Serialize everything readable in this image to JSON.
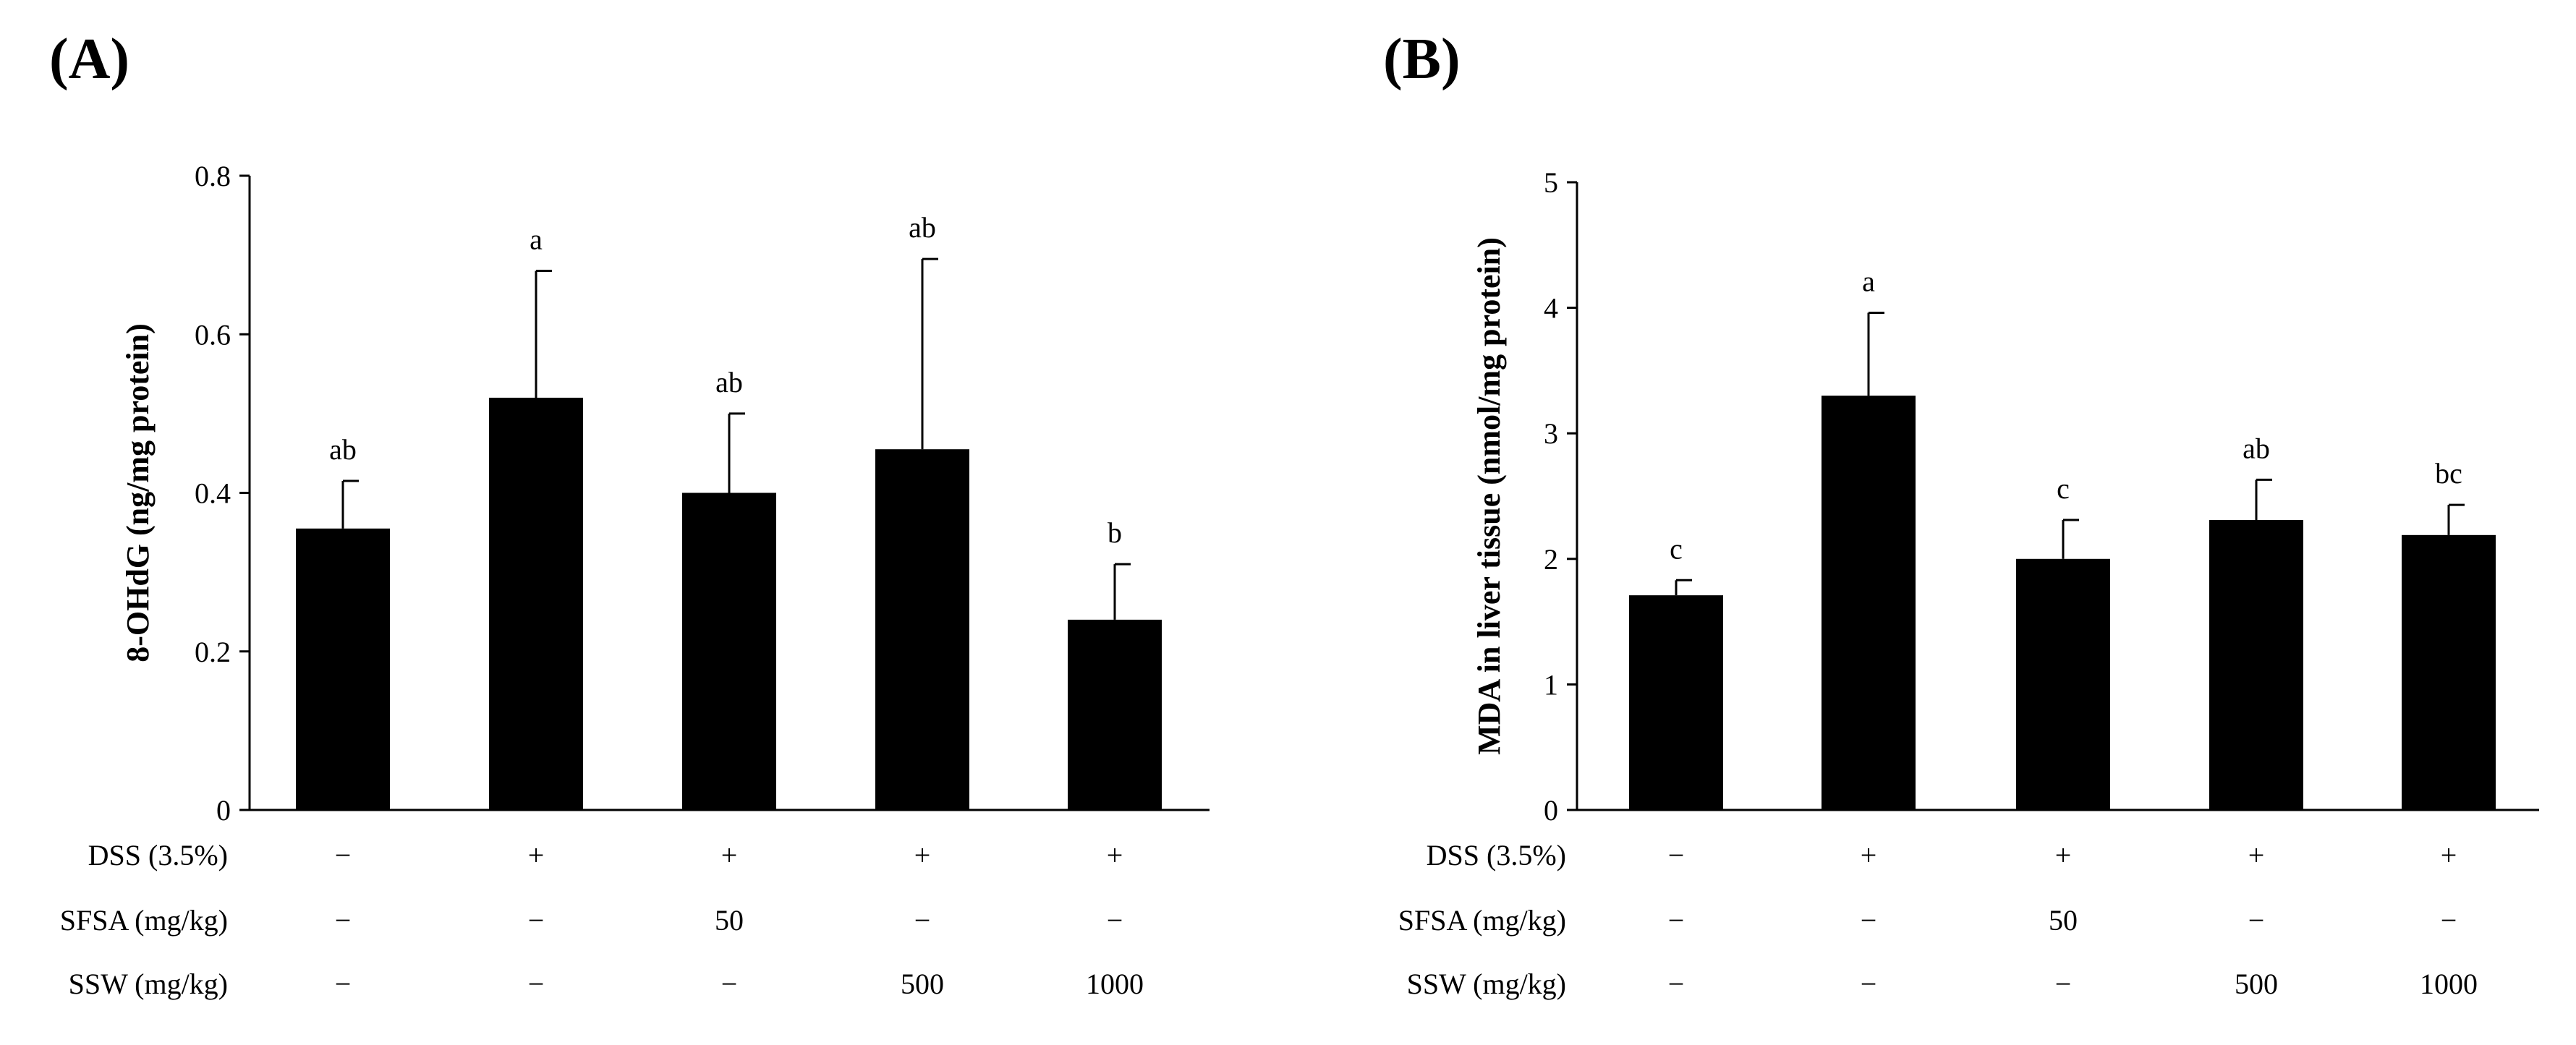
{
  "chart_data": [
    {
      "type": "bar",
      "panel": "(A)",
      "title": "",
      "xlabel": "",
      "ylabel": "8-OHdG (ng/mg protein)",
      "ylim": [
        0,
        0.8
      ],
      "yticks": [
        "0",
        "0.2",
        "0.4",
        "0.6",
        "0.8"
      ],
      "ytick_values": [
        0,
        0.2,
        0.4,
        0.6,
        0.8
      ],
      "values": [
        0.355,
        0.52,
        0.4,
        0.455,
        0.24
      ],
      "errors": [
        0.06,
        0.16,
        0.1,
        0.24,
        0.07
      ],
      "significance": [
        "ab",
        "a",
        "ab",
        "ab",
        "b"
      ],
      "conditions": [
        {
          "label": "DSS (3.5%)",
          "values": [
            "−",
            "+",
            "+",
            "+",
            "+"
          ]
        },
        {
          "label": "SFSA (mg/kg)",
          "values": [
            "−",
            "−",
            "50",
            "−",
            "−"
          ]
        },
        {
          "label": "SSW (mg/kg)",
          "values": [
            "−",
            "−",
            "−",
            "500",
            "1000"
          ]
        }
      ]
    },
    {
      "type": "bar",
      "panel": "(B)",
      "title": "",
      "xlabel": "",
      "ylabel": "MDA in liver  tissue (nmol/mg protein)",
      "ylim": [
        0,
        5
      ],
      "yticks": [
        "0",
        "1",
        "2",
        "3",
        "4",
        "5"
      ],
      "ytick_values": [
        0,
        1,
        2,
        3,
        4,
        5
      ],
      "values": [
        1.71,
        3.3,
        2.0,
        2.31,
        2.19
      ],
      "errors": [
        0.12,
        0.66,
        0.31,
        0.32,
        0.24
      ],
      "significance": [
        "c",
        "a",
        "c",
        "ab",
        "bc"
      ],
      "conditions": [
        {
          "label": "DSS (3.5%)",
          "values": [
            "−",
            "+",
            "+",
            "+",
            "+"
          ]
        },
        {
          "label": "SFSA (mg/kg)",
          "values": [
            "−",
            "−",
            "50",
            "−",
            "−"
          ]
        },
        {
          "label": "SSW (mg/kg)",
          "values": [
            "−",
            "−",
            "−",
            "500",
            "1000"
          ]
        }
      ]
    }
  ],
  "colors": {
    "bar": "#000000",
    "axis": "#000000",
    "background": "#ffffff"
  }
}
